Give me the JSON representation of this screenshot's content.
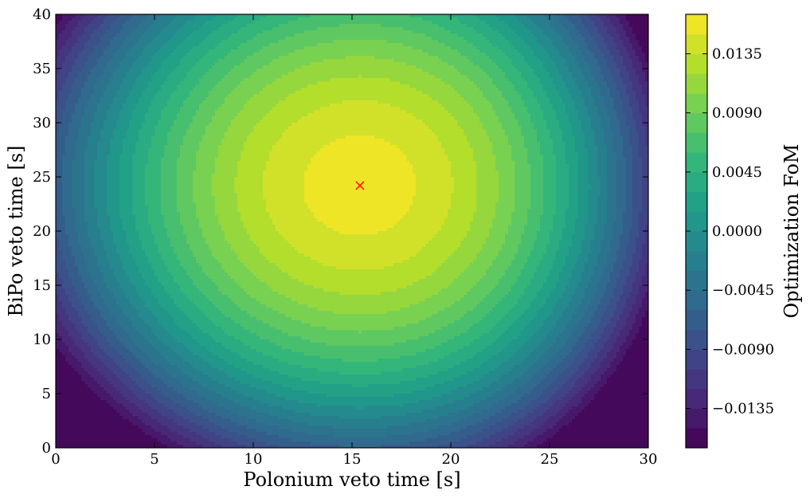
{
  "chart_data": {
    "type": "heatmap",
    "subtype": "filled-contour",
    "title": "",
    "xlabel": "Polonium veto time [s]",
    "ylabel": "BiPo veto time [s]",
    "xlim": [
      0,
      30
    ],
    "ylim": [
      0,
      40
    ],
    "xticks": [
      0,
      5,
      10,
      15,
      20,
      25,
      30
    ],
    "yticks": [
      0,
      5,
      10,
      15,
      20,
      25,
      30,
      35,
      40
    ],
    "colormap": "viridis",
    "colorbar": {
      "label": "Optimization FoM",
      "range": [
        -0.0165,
        0.0165
      ],
      "level_step": 0.0015,
      "ticks": [
        -0.0135,
        -0.009,
        -0.0045,
        0.0,
        0.0045,
        0.009,
        0.0135
      ],
      "tick_labels": [
        "−0.0135",
        "−0.0090",
        "−0.0045",
        "0.0000",
        "0.0045",
        "0.0090",
        "0.0135"
      ]
    },
    "optimum": {
      "x": 15.4,
      "y": 24.2,
      "value": 0.0155,
      "marker": "x",
      "color": "#ff0000"
    },
    "grid": false,
    "legend": "none"
  }
}
